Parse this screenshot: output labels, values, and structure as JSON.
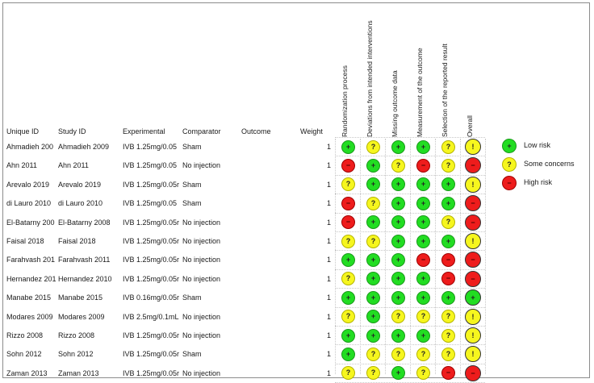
{
  "columns": {
    "unique_id": "Unique ID",
    "study_id": "Study ID",
    "experimental": "Experimental",
    "comparator": "Comparator",
    "outcome": "Outcome",
    "weight": "Weight"
  },
  "domains": [
    "Randomization process",
    "Deviations from intended interventions",
    "Missing outcome data",
    "Measurement of the outcome",
    "Selection of the reported result",
    "Overall"
  ],
  "symbols": {
    "low": "+",
    "some": "?",
    "high": "−",
    "overall_some": "!"
  },
  "rows": [
    {
      "unique_id": "Ahmadieh 200",
      "study_id": "Ahmadieh 2009",
      "experimental": "IVB 1.25mg/0.05",
      "comparator": "Sham",
      "outcome": "",
      "weight": "1",
      "ratings": [
        "low",
        "some",
        "low",
        "low",
        "some",
        "some"
      ]
    },
    {
      "unique_id": "Ahn 2011",
      "study_id": "Ahn 2011",
      "experimental": "IVB 1.25mg/0.05",
      "comparator": "No injection",
      "outcome": "",
      "weight": "1",
      "ratings": [
        "high",
        "low",
        "some",
        "high",
        "some",
        "high"
      ]
    },
    {
      "unique_id": "Arevalo 2019",
      "study_id": "Arevalo 2019",
      "experimental": "IVB 1.25mg/0.05r",
      "comparator": "Sham",
      "outcome": "",
      "weight": "1",
      "ratings": [
        "some",
        "low",
        "low",
        "low",
        "low",
        "some"
      ]
    },
    {
      "unique_id": "di Lauro 2010",
      "study_id": "di Lauro 2010",
      "experimental": "IVB 1.25mg/0.05",
      "comparator": "Sham",
      "outcome": "",
      "weight": "1",
      "ratings": [
        "high",
        "some",
        "low",
        "low",
        "low",
        "high"
      ]
    },
    {
      "unique_id": "El-Batarny 200",
      "study_id": "El-Batarny 2008",
      "experimental": "IVB 1.25mg/0.05r",
      "comparator": "No injection",
      "outcome": "",
      "weight": "1",
      "ratings": [
        "high",
        "low",
        "low",
        "low",
        "some",
        "high"
      ]
    },
    {
      "unique_id": "Faisal 2018",
      "study_id": "Faisal 2018",
      "experimental": "IVB 1.25mg/0.05r",
      "comparator": "No injection",
      "outcome": "",
      "weight": "1",
      "ratings": [
        "some",
        "some",
        "low",
        "low",
        "low",
        "some"
      ]
    },
    {
      "unique_id": "Farahvash 201",
      "study_id": "Farahvash 2011",
      "experimental": "IVB 1.25mg/0.05r",
      "comparator": "No injection",
      "outcome": "",
      "weight": "1",
      "ratings": [
        "low",
        "low",
        "low",
        "high",
        "high",
        "high"
      ]
    },
    {
      "unique_id": "Hernandez 201",
      "study_id": "Hernandez 2010",
      "experimental": "IVB 1.25mg/0.05r",
      "comparator": "No injection",
      "outcome": "",
      "weight": "1",
      "ratings": [
        "some",
        "low",
        "low",
        "low",
        "high",
        "high"
      ]
    },
    {
      "unique_id": "Manabe 2015",
      "study_id": "Manabe 2015",
      "experimental": "IVB 0.16mg/0.05r",
      "comparator": "Sham",
      "outcome": "",
      "weight": "1",
      "ratings": [
        "low",
        "low",
        "low",
        "low",
        "low",
        "low"
      ]
    },
    {
      "unique_id": "Modares 2009",
      "study_id": "Modares 2009",
      "experimental": "IVB 2.5mg/0.1mL",
      "comparator": "No injection",
      "outcome": "",
      "weight": "1",
      "ratings": [
        "some",
        "low",
        "some",
        "some",
        "some",
        "some"
      ]
    },
    {
      "unique_id": "Rizzo 2008",
      "study_id": "Rizzo 2008",
      "experimental": "IVB 1.25mg/0.05r",
      "comparator": "No injection",
      "outcome": "",
      "weight": "1",
      "ratings": [
        "low",
        "low",
        "low",
        "low",
        "some",
        "some"
      ]
    },
    {
      "unique_id": "Sohn 2012",
      "study_id": "Sohn 2012",
      "experimental": "IVB 1.25mg/0.05r",
      "comparator": "Sham",
      "outcome": "",
      "weight": "1",
      "ratings": [
        "low",
        "some",
        "some",
        "some",
        "some",
        "some"
      ]
    },
    {
      "unique_id": "Zaman 2013",
      "study_id": "Zaman 2013",
      "experimental": "IVB 1.25mg/0.05r",
      "comparator": "No injection",
      "outcome": "",
      "weight": "1",
      "ratings": [
        "some",
        "some",
        "low",
        "some",
        "high",
        "high"
      ]
    }
  ],
  "legend": [
    {
      "level": "low",
      "label": "Low risk"
    },
    {
      "level": "some",
      "label": "Some concerns"
    },
    {
      "level": "high",
      "label": "High risk"
    }
  ],
  "colors": {
    "low": "#22dd22",
    "some": "#f6f61e",
    "high": "#ee1c1c"
  }
}
